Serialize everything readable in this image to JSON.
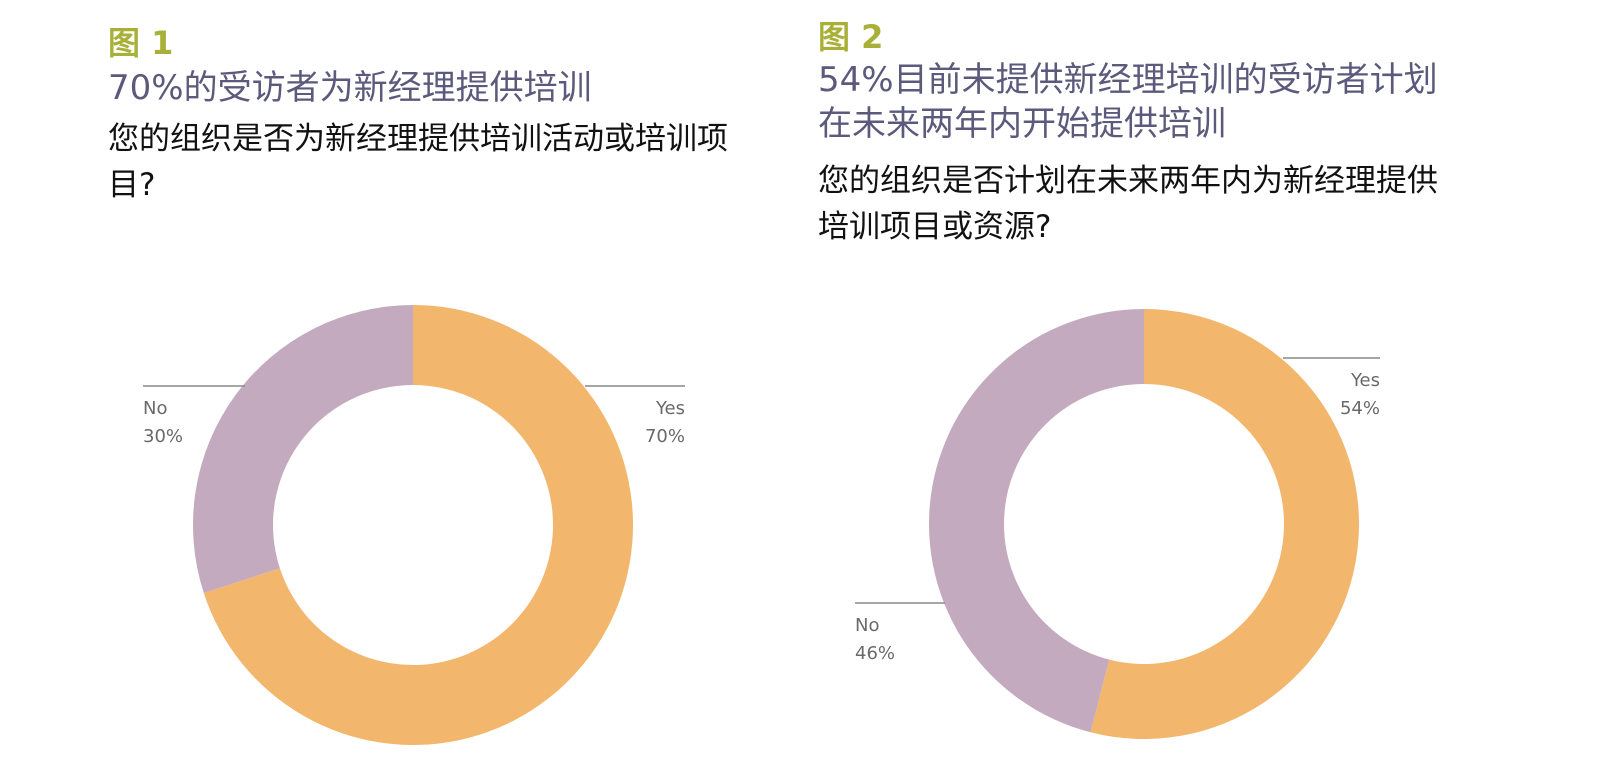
{
  "chart_data": [
    {
      "type": "donut",
      "figure": "图 1",
      "title": "70%的受访者为新经理提供培训",
      "subtitle": "您的组织是否为新经理提供培训活动或培训项目?",
      "categories": [
        "Yes",
        "No"
      ],
      "values": [
        70,
        30
      ],
      "value_labels": [
        "70%",
        "30%"
      ],
      "colors": [
        "#f2b66c",
        "#c3aabf"
      ]
    },
    {
      "type": "donut",
      "figure": "图 2",
      "title": "54%目前未提供新经理培训的受访者计划在未来两年内开始提供培训",
      "subtitle": "您的组织是否计划在未来两年内为新经理提供培训项目或资源?",
      "categories": [
        "Yes",
        "No"
      ],
      "values": [
        54,
        46
      ],
      "value_labels": [
        "54%",
        "46%"
      ],
      "colors": [
        "#f2b66c",
        "#c3aabf"
      ]
    }
  ]
}
